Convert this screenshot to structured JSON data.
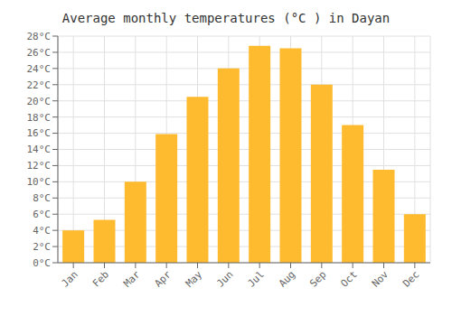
{
  "chart_data": {
    "type": "bar",
    "title": "Average monthly temperatures (°C ) in Dayan",
    "categories": [
      "Jan",
      "Feb",
      "Mar",
      "Apr",
      "May",
      "Jun",
      "Jul",
      "Aug",
      "Sep",
      "Oct",
      "Nov",
      "Dec"
    ],
    "values": [
      4,
      5.3,
      10,
      15.9,
      20.5,
      24,
      26.8,
      26.5,
      22,
      17,
      11.5,
      6
    ],
    "color": "#FFBB30",
    "ylim": [
      0,
      28
    ],
    "yticks": [
      {
        "value": 0,
        "label": "0°C"
      },
      {
        "value": 2,
        "label": "2°C"
      },
      {
        "value": 4,
        "label": "4°C"
      },
      {
        "value": 6,
        "label": "6°C"
      },
      {
        "value": 8,
        "label": "8°C"
      },
      {
        "value": 10,
        "label": "10°C"
      },
      {
        "value": 12,
        "label": "12°C"
      },
      {
        "value": 14,
        "label": "14°C"
      },
      {
        "value": 16,
        "label": "16°C"
      },
      {
        "value": 18,
        "label": "18°C"
      },
      {
        "value": 20,
        "label": "20°C"
      },
      {
        "value": 22,
        "label": "22°C"
      },
      {
        "value": 24,
        "label": "24°C"
      },
      {
        "value": 26,
        "label": "26°C"
      },
      {
        "value": 28,
        "label": "28°C"
      }
    ],
    "grid": true
  }
}
